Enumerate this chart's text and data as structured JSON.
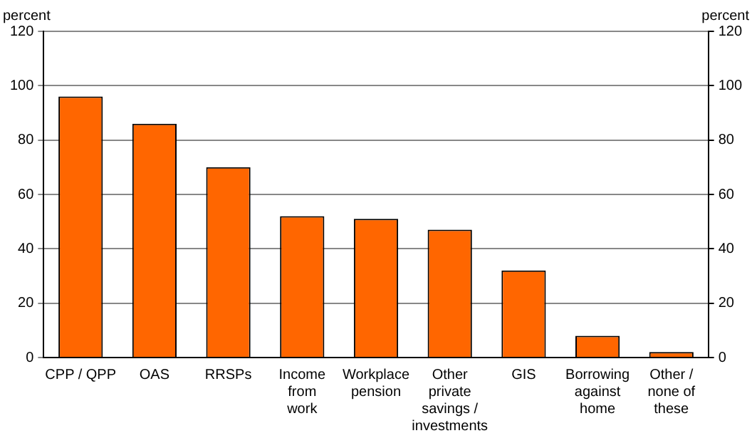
{
  "chart_data": {
    "type": "bar",
    "ylabel": "percent",
    "y2label": "percent",
    "categories": [
      "CPP / QPP",
      "OAS",
      "RRSPs",
      "Income\nfrom\nwork",
      "Workplace\npension",
      "Other\nprivate\nsavings /\ninvestments",
      "GIS",
      "Borrowing\nagainst\nhome",
      "Other /\nnone of\nthese"
    ],
    "values": [
      96,
      86,
      70,
      52,
      51,
      47,
      32,
      8,
      2
    ],
    "color": "#ff6600",
    "ylim": [
      0,
      120
    ],
    "yticks": [
      0,
      20,
      40,
      60,
      80,
      100,
      120
    ],
    "y2lim": [
      0,
      120
    ],
    "y2ticks": [
      0,
      20,
      40,
      60,
      80,
      100,
      120
    ],
    "grid": "y",
    "legend": false
  }
}
